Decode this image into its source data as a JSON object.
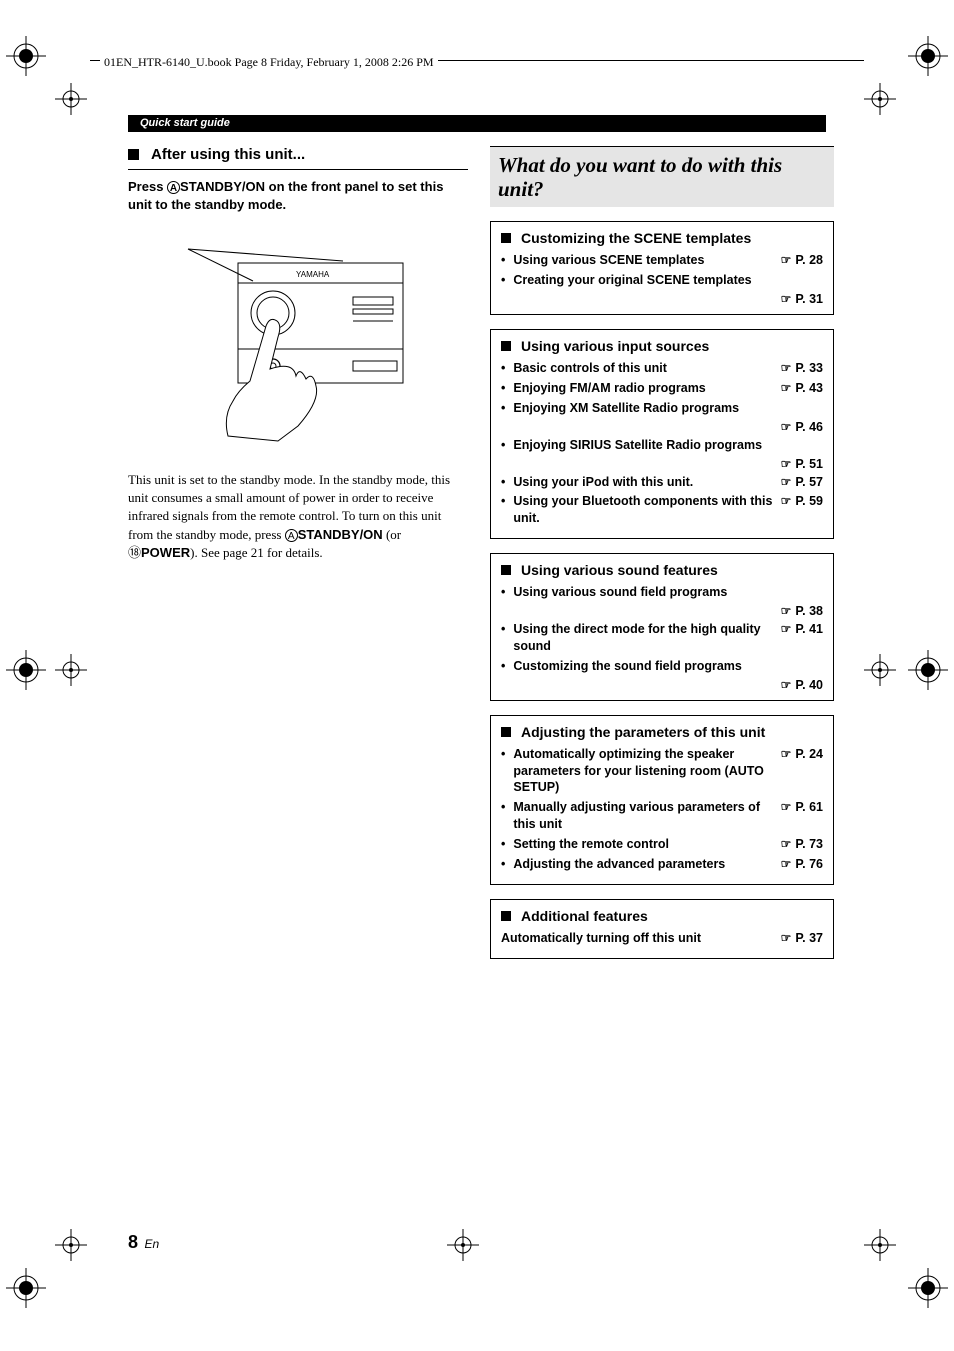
{
  "header": {
    "file_info": "01EN_HTR-6140_U.book  Page 8  Friday, February 1, 2008  2:26 PM"
  },
  "top_bar": "Quick start guide",
  "left": {
    "heading": "After using this unit...",
    "instruction_prefix": "Press ",
    "instruction_button_label": "A",
    "instruction_button_text": "STANDBY/ON",
    "instruction_suffix": " on the front panel to set this unit to the standby mode.",
    "diagram_brand": "YAMAHA",
    "body_text_1": "This unit is set to the standby mode. In the standby mode, this unit consumes a small amount of power in order to receive infrared signals from the remote control. To turn on this unit from the standby mode, press ",
    "body_circ1": "A",
    "body_bold1": "STANDBY/ON",
    "body_text_2": " (or ",
    "body_circ2": "⑱",
    "body_bold2": "POWER",
    "body_text_3": "). See page 21 for details."
  },
  "right": {
    "section_title": "What do you want to do with this unit?",
    "boxes": [
      {
        "heading": "Customizing the SCENE templates",
        "items": [
          {
            "text": "Using various SCENE templates",
            "page": "P. 28",
            "wrap": false
          },
          {
            "text": "Creating your original SCENE templates",
            "page": "P. 31",
            "wrap": true
          }
        ]
      },
      {
        "heading": "Using various input sources",
        "items": [
          {
            "text": "Basic controls of this unit",
            "page": "P. 33",
            "wrap": false
          },
          {
            "text": "Enjoying FM/AM radio programs",
            "page": "P. 43",
            "wrap": false
          },
          {
            "text": "Enjoying XM Satellite Radio programs",
            "page": "P. 46",
            "wrap": true
          },
          {
            "text": "Enjoying SIRIUS Satellite Radio programs",
            "page": "P. 51",
            "wrap": true
          },
          {
            "text": "Using your iPod with this unit.",
            "page": "P. 57",
            "wrap": false
          },
          {
            "text": "Using your Bluetooth components with this unit.",
            "page": "P. 59",
            "wrap": false
          }
        ]
      },
      {
        "heading": "Using various sound features",
        "items": [
          {
            "text": "Using various sound field programs",
            "page": "P. 38",
            "wrap": true
          },
          {
            "text": "Using the direct mode for the high quality sound",
            "page": "P. 41",
            "wrap": false
          },
          {
            "text": "Customizing the sound field programs",
            "page": "P. 40",
            "wrap": true
          }
        ]
      },
      {
        "heading": "Adjusting the parameters of this unit",
        "items": [
          {
            "text": "Automatically optimizing the speaker parameters for your listening room (AUTO SETUP)",
            "page": "P. 24",
            "wrap": false
          },
          {
            "text": "Manually adjusting various parameters of this unit",
            "page": "P. 61",
            "wrap": false
          },
          {
            "text": "Setting the remote control",
            "page": "P. 73",
            "wrap": false
          },
          {
            "text": "Adjusting the advanced parameters",
            "page": "P. 76",
            "wrap": false
          }
        ]
      },
      {
        "heading": "Additional features",
        "items": [
          {
            "text": "Automatically turning off this unit",
            "page": "P. 37",
            "wrap": false,
            "no_bullet": true
          }
        ]
      }
    ]
  },
  "footer": {
    "page_number": "8",
    "lang": "En"
  },
  "style": {
    "text_color": "#000000",
    "bg_color": "#ffffff",
    "section_bg": "#e5e5e5"
  }
}
